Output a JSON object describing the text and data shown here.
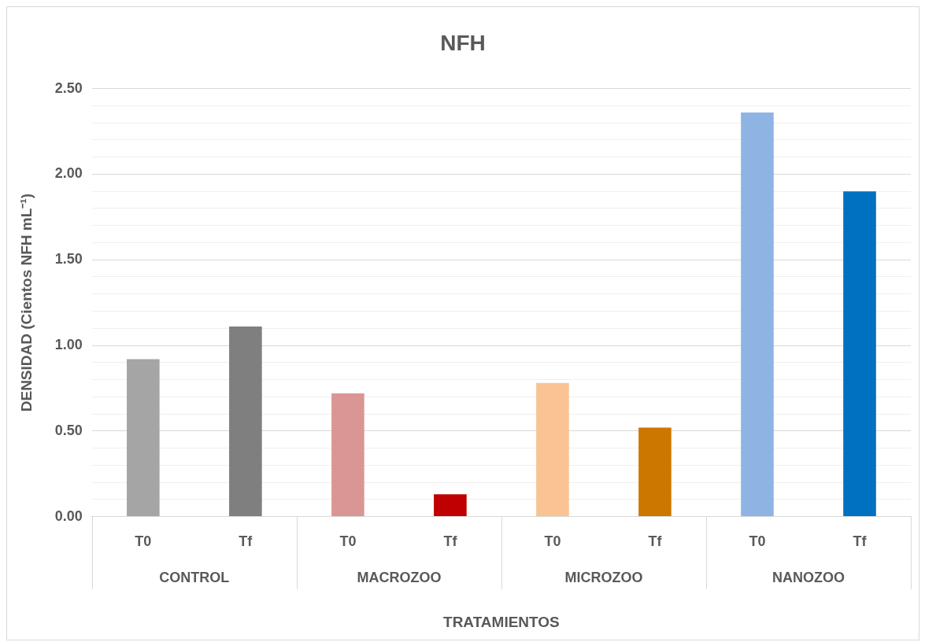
{
  "chart_data": {
    "type": "bar",
    "title": "NFH",
    "xlabel": "TRATAMIENTOS",
    "ylabel": "DENSIDAD (Cientos NFH mL⁻¹)",
    "categories": [
      "T0",
      "Tf",
      "T0",
      "Tf",
      "T0",
      "Tf",
      "T0",
      "Tf"
    ],
    "annotations": [
      "CONTROL",
      "MACROZOO",
      "MICROZOO",
      "NANOZOO"
    ],
    "values": [
      0.92,
      1.11,
      0.72,
      0.13,
      0.78,
      0.52,
      2.36,
      1.9
    ],
    "colors": [
      "#a5a5a5",
      "#7f7f7f",
      "#da9694",
      "#c00000",
      "#f9c394",
      "#cc7700",
      "#8eb4e3",
      "#0070c0"
    ],
    "ylim": [
      0,
      2.5
    ],
    "yticks": [
      {
        "value": 0,
        "label": "0.00"
      },
      {
        "value": 0.1,
        "label": null
      },
      {
        "value": 0.2,
        "label": null
      },
      {
        "value": 0.3,
        "label": null
      },
      {
        "value": 0.4,
        "label": null
      },
      {
        "value": 0.5,
        "label": "0.50"
      },
      {
        "value": 0.6,
        "label": null
      },
      {
        "value": 0.7,
        "label": null
      },
      {
        "value": 0.8,
        "label": null
      },
      {
        "value": 0.9,
        "label": null
      },
      {
        "value": 1,
        "label": "1.00"
      },
      {
        "value": 1.1,
        "label": null
      },
      {
        "value": 1.2,
        "label": null
      },
      {
        "value": 1.3,
        "label": null
      },
      {
        "value": 1.4,
        "label": null
      },
      {
        "value": 1.5,
        "label": "1.50"
      },
      {
        "value": 1.6,
        "label": null
      },
      {
        "value": 1.7,
        "label": null
      },
      {
        "value": 1.8,
        "label": null
      },
      {
        "value": 1.9,
        "label": null
      },
      {
        "value": 2,
        "label": "2.00"
      },
      {
        "value": 2.1,
        "label": null
      },
      {
        "value": 2.2,
        "label": null
      },
      {
        "value": 2.3,
        "label": null
      },
      {
        "value": 2.4,
        "label": null
      },
      {
        "value": 2.5,
        "label": "2.50"
      }
    ],
    "grid": "y"
  }
}
